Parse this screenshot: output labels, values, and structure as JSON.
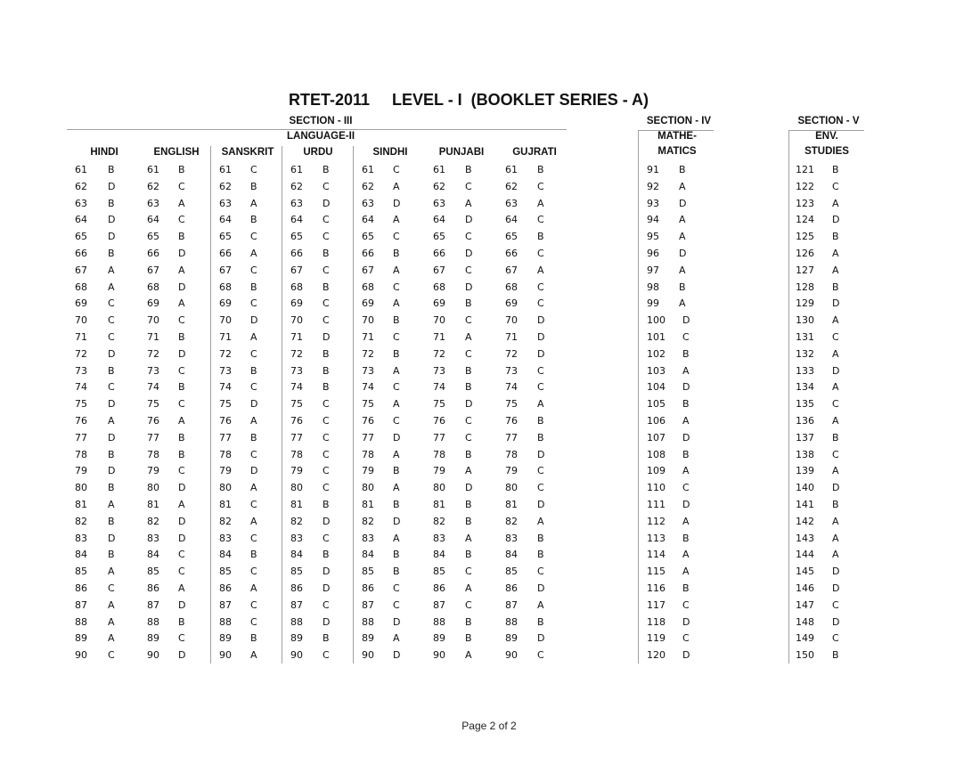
{
  "title": "RTET-2011     LEVEL - I  (BOOKLET SERIES - A)",
  "section3": {
    "label": "SECTION - III",
    "sublabel": "LANGUAGE-II"
  },
  "section4": {
    "label": "SECTION - IV",
    "sublabel1": "MATHE-",
    "sublabel2": "MATICS"
  },
  "section5": {
    "label": "SECTION - V",
    "sublabel1": "ENV.",
    "sublabel2": "STUDIES"
  },
  "columns": [
    {
      "header": "HINDI",
      "questions": [
        61,
        62,
        63,
        64,
        65,
        66,
        67,
        68,
        69,
        70,
        71,
        72,
        73,
        74,
        75,
        76,
        77,
        78,
        79,
        80,
        81,
        82,
        83,
        84,
        85,
        86,
        87,
        88,
        89,
        90
      ],
      "answers": [
        "B",
        "D",
        "B",
        "D",
        "D",
        "B",
        "A",
        "A",
        "C",
        "C",
        "C",
        "D",
        "B",
        "C",
        "D",
        "A",
        "D",
        "B",
        "D",
        "B",
        "A",
        "B",
        "D",
        "B",
        "A",
        "C",
        "A",
        "A",
        "A",
        "C"
      ]
    },
    {
      "header": "ENGLISH",
      "questions": [
        61,
        62,
        63,
        64,
        65,
        66,
        67,
        68,
        69,
        70,
        71,
        72,
        73,
        74,
        75,
        76,
        77,
        78,
        79,
        80,
        81,
        82,
        83,
        84,
        85,
        86,
        87,
        88,
        89,
        90
      ],
      "answers": [
        "B",
        "C",
        "A",
        "C",
        "B",
        "D",
        "A",
        "D",
        "A",
        "C",
        "B",
        "D",
        "C",
        "B",
        "C",
        "A",
        "B",
        "B",
        "C",
        "D",
        "A",
        "D",
        "D",
        "C",
        "C",
        "A",
        "D",
        "B",
        "C",
        "D"
      ]
    },
    {
      "header": "SANSKRIT",
      "questions": [
        61,
        62,
        63,
        64,
        65,
        66,
        67,
        68,
        69,
        70,
        71,
        72,
        73,
        74,
        75,
        76,
        77,
        78,
        79,
        80,
        81,
        82,
        83,
        84,
        85,
        86,
        87,
        88,
        89,
        90
      ],
      "answers": [
        "C",
        "B",
        "A",
        "B",
        "C",
        "A",
        "C",
        "B",
        "C",
        "D",
        "A",
        "C",
        "B",
        "C",
        "D",
        "A",
        "B",
        "C",
        "D",
        "A",
        "C",
        "A",
        "C",
        "B",
        "C",
        "A",
        "C",
        "C",
        "B",
        "A"
      ]
    },
    {
      "header": "URDU",
      "questions": [
        61,
        62,
        63,
        64,
        65,
        66,
        67,
        68,
        69,
        70,
        71,
        72,
        73,
        74,
        75,
        76,
        77,
        78,
        79,
        80,
        81,
        82,
        83,
        84,
        85,
        86,
        87,
        88,
        89,
        90
      ],
      "answers": [
        "B",
        "C",
        "D",
        "C",
        "C",
        "B",
        "C",
        "B",
        "C",
        "C",
        "D",
        "B",
        "B",
        "B",
        "C",
        "C",
        "C",
        "C",
        "C",
        "C",
        "B",
        "D",
        "C",
        "B",
        "D",
        "D",
        "C",
        "D",
        "B",
        "C"
      ]
    },
    {
      "header": "SINDHI",
      "questions": [
        61,
        62,
        63,
        64,
        65,
        66,
        67,
        68,
        69,
        70,
        71,
        72,
        73,
        74,
        75,
        76,
        77,
        78,
        79,
        80,
        81,
        82,
        83,
        84,
        85,
        86,
        87,
        88,
        89,
        90
      ],
      "answers": [
        "C",
        "A",
        "D",
        "A",
        "C",
        "B",
        "A",
        "C",
        "A",
        "B",
        "C",
        "B",
        "A",
        "C",
        "A",
        "C",
        "D",
        "A",
        "B",
        "A",
        "B",
        "D",
        "A",
        "B",
        "B",
        "C",
        "C",
        "D",
        "A",
        "D"
      ]
    },
    {
      "header": "PUNJABI",
      "questions": [
        61,
        62,
        63,
        64,
        65,
        66,
        67,
        68,
        69,
        70,
        71,
        72,
        73,
        74,
        75,
        76,
        77,
        78,
        79,
        80,
        81,
        82,
        83,
        84,
        85,
        86,
        87,
        88,
        89,
        90
      ],
      "answers": [
        "B",
        "C",
        "A",
        "D",
        "C",
        "D",
        "C",
        "D",
        "B",
        "C",
        "A",
        "C",
        "B",
        "B",
        "D",
        "C",
        "C",
        "B",
        "A",
        "D",
        "B",
        "B",
        "A",
        "B",
        "C",
        "A",
        "C",
        "B",
        "B",
        "A"
      ]
    },
    {
      "header": "GUJRATI",
      "questions": [
        61,
        62,
        63,
        64,
        65,
        66,
        67,
        68,
        69,
        70,
        71,
        72,
        73,
        74,
        75,
        76,
        77,
        78,
        79,
        80,
        81,
        82,
        83,
        84,
        85,
        86,
        87,
        88,
        89,
        90
      ],
      "answers": [
        "B",
        "C",
        "A",
        "C",
        "B",
        "C",
        "A",
        "C",
        "C",
        "D",
        "D",
        "D",
        "C",
        "C",
        "A",
        "B",
        "B",
        "D",
        "C",
        "C",
        "D",
        "A",
        "B",
        "B",
        "C",
        "D",
        "A",
        "B",
        "D",
        "C"
      ]
    },
    {
      "header": "",
      "questions": [
        91,
        92,
        93,
        94,
        95,
        96,
        97,
        98,
        99,
        100,
        101,
        102,
        103,
        104,
        105,
        106,
        107,
        108,
        109,
        110,
        111,
        112,
        113,
        114,
        115,
        116,
        117,
        118,
        119,
        120
      ],
      "answers": [
        "B",
        "A",
        "D",
        "A",
        "A",
        "D",
        "A",
        "B",
        "A",
        "D",
        "C",
        "B",
        "A",
        "D",
        "B",
        "A",
        "D",
        "B",
        "A",
        "C",
        "D",
        "A",
        "B",
        "A",
        "A",
        "B",
        "C",
        "D",
        "C",
        "D"
      ]
    },
    {
      "header": "",
      "questions": [
        121,
        122,
        123,
        124,
        125,
        126,
        127,
        128,
        129,
        130,
        131,
        132,
        133,
        134,
        135,
        136,
        137,
        138,
        139,
        140,
        141,
        142,
        143,
        144,
        145,
        146,
        147,
        148,
        149,
        150
      ],
      "answers": [
        "B",
        "C",
        "A",
        "D",
        "B",
        "A",
        "A",
        "B",
        "D",
        "A",
        "C",
        "A",
        "D",
        "A",
        "C",
        "A",
        "B",
        "C",
        "A",
        "D",
        "B",
        "A",
        "A",
        "A",
        "D",
        "D",
        "C",
        "D",
        "C",
        "B"
      ]
    }
  ],
  "footer": "Page 2 of 2"
}
